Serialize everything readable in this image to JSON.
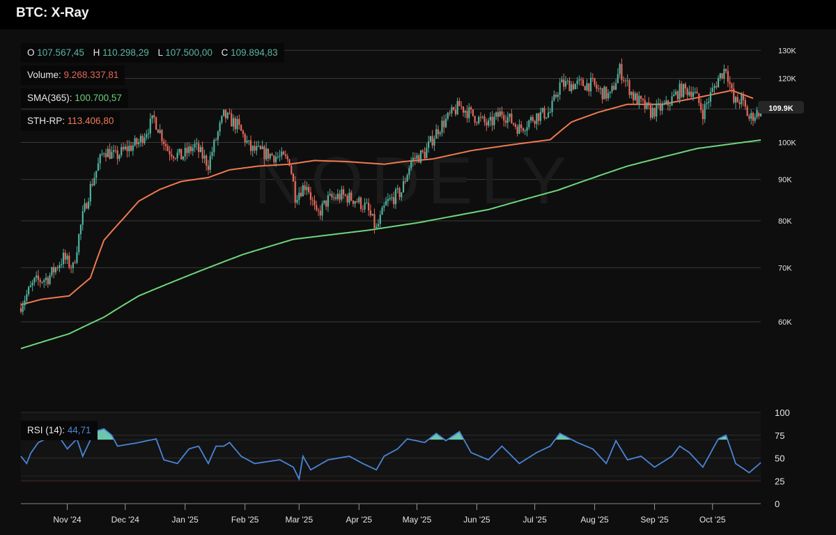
{
  "header": {
    "title": "BTC: X-Ray"
  },
  "legend": {
    "o_label": "O",
    "o": "107.567,45",
    "h_label": "H",
    "h": "110.298,29",
    "l_label": "L",
    "l": "107.500,00",
    "c_label": "C",
    "c": "109.894,83",
    "volume_label": "Volume:",
    "volume": "9.268.337,81",
    "sma_label": "SMA(365):",
    "sma": "100.700,57",
    "sth_label": "STH-RP:",
    "sth": "113.406,80",
    "rsi_label": "RSI (14):",
    "rsi": "44,71"
  },
  "price_tag": "109.9K",
  "watermark": "NODELY",
  "colors": {
    "up": "#4fb3a0",
    "down": "#e8685a",
    "sma": "#6fd67c",
    "sth": "#f07a50",
    "rsi": "#4a85d8"
  },
  "chart_data": {
    "type": "candlestick",
    "title": "BTC: X-Ray",
    "start_date": "2024-10-08",
    "y_scale": "log",
    "ylim": [
      53000,
      133000
    ],
    "y_ticks": [
      {
        "value": 130000,
        "label": "130K"
      },
      {
        "value": 120000,
        "label": "120K"
      },
      {
        "value": 110000,
        "label": ""
      },
      {
        "value": 100000,
        "label": "100K"
      },
      {
        "value": 90000,
        "label": "90K"
      },
      {
        "value": 80000,
        "label": "80K"
      },
      {
        "value": 70000,
        "label": "70K"
      },
      {
        "value": 60000,
        "label": "60K"
      }
    ],
    "x_ticks": [
      {
        "day": 24,
        "label": "Nov '24"
      },
      {
        "day": 54,
        "label": "Dec '24"
      },
      {
        "day": 85,
        "label": "Jan '25"
      },
      {
        "day": 116,
        "label": "Feb '25"
      },
      {
        "day": 144,
        "label": "Mar '25"
      },
      {
        "day": 175,
        "label": "Apr '25"
      },
      {
        "day": 205,
        "label": "May '25"
      },
      {
        "day": 236,
        "label": "Jun '25"
      },
      {
        "day": 266,
        "label": "Jul '25"
      },
      {
        "day": 297,
        "label": "Aug '25"
      },
      {
        "day": 328,
        "label": "Sep '25"
      },
      {
        "day": 358,
        "label": "Oct '25"
      }
    ],
    "days": 383,
    "close_waypoints": [
      [
        0,
        63000
      ],
      [
        7,
        67200
      ],
      [
        14,
        68000
      ],
      [
        22,
        72000
      ],
      [
        27,
        70000
      ],
      [
        32,
        81000
      ],
      [
        36,
        88000
      ],
      [
        43,
        98000
      ],
      [
        49,
        96000
      ],
      [
        54,
        98000
      ],
      [
        61,
        100000
      ],
      [
        69,
        107000
      ],
      [
        76,
        98000
      ],
      [
        83,
        96000
      ],
      [
        90,
        99000
      ],
      [
        97,
        94000
      ],
      [
        105,
        108000
      ],
      [
        112,
        105000
      ],
      [
        119,
        98000
      ],
      [
        126,
        97000
      ],
      [
        133,
        96000
      ],
      [
        139,
        95000
      ],
      [
        142,
        86000
      ],
      [
        148,
        89000
      ],
      [
        153,
        81000
      ],
      [
        159,
        85000
      ],
      [
        166,
        86000
      ],
      [
        173,
        85000
      ],
      [
        179,
        83000
      ],
      [
        184,
        78000
      ],
      [
        189,
        84000
      ],
      [
        197,
        87000
      ],
      [
        202,
        95000
      ],
      [
        209,
        97000
      ],
      [
        216,
        104000
      ],
      [
        227,
        111000
      ],
      [
        234,
        108000
      ],
      [
        242,
        105000
      ],
      [
        249,
        109000
      ],
      [
        258,
        104000
      ],
      [
        267,
        108000
      ],
      [
        274,
        109000
      ],
      [
        279,
        118000
      ],
      [
        288,
        118000
      ],
      [
        296,
        118000
      ],
      [
        299,
        116000
      ],
      [
        305,
        114000
      ],
      [
        310,
        123000
      ],
      [
        317,
        114000
      ],
      [
        326,
        109000
      ],
      [
        334,
        111000
      ],
      [
        341,
        116000
      ],
      [
        348,
        116000
      ],
      [
        353,
        109000
      ],
      [
        361,
        120000
      ],
      [
        365,
        124000
      ],
      [
        369,
        112000
      ],
      [
        373,
        113000
      ],
      [
        377,
        107000
      ],
      [
        383,
        109895
      ]
    ],
    "sma365_waypoints": [
      [
        0,
        55600
      ],
      [
        25,
        58000
      ],
      [
        43,
        60800
      ],
      [
        61,
        64600
      ],
      [
        97,
        70000
      ],
      [
        115,
        72700
      ],
      [
        141,
        75900
      ],
      [
        180,
        77900
      ],
      [
        206,
        79600
      ],
      [
        242,
        82600
      ],
      [
        278,
        87300
      ],
      [
        314,
        93500
      ],
      [
        350,
        98300
      ],
      [
        383,
        100700
      ]
    ],
    "sth_rp_waypoints": [
      [
        0,
        63000
      ],
      [
        11,
        64000
      ],
      [
        25,
        64600
      ],
      [
        36,
        68000
      ],
      [
        43,
        75700
      ],
      [
        54,
        81000
      ],
      [
        61,
        84600
      ],
      [
        72,
        87500
      ],
      [
        83,
        89500
      ],
      [
        97,
        90500
      ],
      [
        108,
        92500
      ],
      [
        123,
        93500
      ],
      [
        139,
        94000
      ],
      [
        152,
        95000
      ],
      [
        169,
        94700
      ],
      [
        188,
        94000
      ],
      [
        198,
        94700
      ],
      [
        213,
        95400
      ],
      [
        234,
        97800
      ],
      [
        256,
        99500
      ],
      [
        274,
        100800
      ],
      [
        285,
        106000
      ],
      [
        299,
        109000
      ],
      [
        314,
        111500
      ],
      [
        332,
        111500
      ],
      [
        350,
        113600
      ],
      [
        368,
        116000
      ],
      [
        379,
        113400
      ]
    ],
    "rsi": {
      "label": "RSI (14)",
      "period": 14,
      "ylim": [
        0,
        100
      ],
      "ticks": [
        100,
        75,
        50,
        25,
        0
      ],
      "overbought": 70,
      "oversold": 30,
      "waypoints": [
        [
          0,
          52
        ],
        [
          3,
          44
        ],
        [
          5,
          55
        ],
        [
          9,
          67
        ],
        [
          13,
          71
        ],
        [
          18,
          79
        ],
        [
          24,
          60
        ],
        [
          29,
          71
        ],
        [
          32,
          52
        ],
        [
          38,
          79
        ],
        [
          43,
          82
        ],
        [
          47,
          75
        ],
        [
          50,
          63
        ],
        [
          61,
          67
        ],
        [
          70,
          71
        ],
        [
          74,
          48
        ],
        [
          81,
          44
        ],
        [
          87,
          60
        ],
        [
          92,
          63
        ],
        [
          97,
          44
        ],
        [
          101,
          63
        ],
        [
          105,
          63
        ],
        [
          108,
          67
        ],
        [
          114,
          52
        ],
        [
          121,
          44
        ],
        [
          134,
          48
        ],
        [
          141,
          40
        ],
        [
          144,
          27
        ],
        [
          146,
          52
        ],
        [
          150,
          37
        ],
        [
          159,
          48
        ],
        [
          170,
          52
        ],
        [
          177,
          44
        ],
        [
          184,
          37
        ],
        [
          188,
          52
        ],
        [
          195,
          60
        ],
        [
          200,
          71
        ],
        [
          209,
          67
        ],
        [
          215,
          77
        ],
        [
          220,
          69
        ],
        [
          227,
          79
        ],
        [
          233,
          56
        ],
        [
          242,
          48
        ],
        [
          249,
          63
        ],
        [
          258,
          44
        ],
        [
          267,
          56
        ],
        [
          274,
          63
        ],
        [
          279,
          77
        ],
        [
          288,
          67
        ],
        [
          296,
          60
        ],
        [
          303,
          44
        ],
        [
          308,
          69
        ],
        [
          314,
          48
        ],
        [
          321,
          52
        ],
        [
          328,
          40
        ],
        [
          337,
          52
        ],
        [
          341,
          63
        ],
        [
          346,
          56
        ],
        [
          353,
          40
        ],
        [
          361,
          71
        ],
        [
          365,
          75
        ],
        [
          370,
          44
        ],
        [
          377,
          34
        ],
        [
          383,
          45
        ]
      ]
    }
  }
}
